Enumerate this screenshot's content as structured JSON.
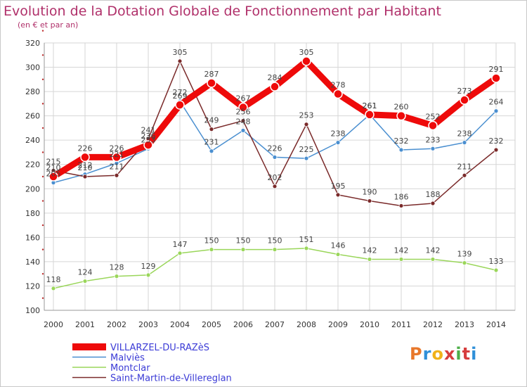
{
  "header": {
    "title": "Evolution de la Dotation Globale de Fonctionnement par Habitant",
    "subtitle": "(en € et par an)"
  },
  "logo": {
    "text": "Proxiti",
    "colors": [
      "#e8772a",
      "#2f8fd8",
      "#f0b21a",
      "#d63d3d",
      "#4dae48",
      "#d63d3d",
      "#2f8fd8"
    ]
  },
  "chart_data": {
    "type": "line",
    "title": "Evolution de la Dotation Globale de Fonctionnement par Habitant",
    "subtitle": "(en € et par an)",
    "xlabel": "",
    "ylabel": "",
    "x": [
      "2000",
      "2001",
      "2002",
      "2003",
      "2004",
      "2005",
      "2006",
      "2007",
      "2008",
      "2009",
      "2010",
      "2011",
      "2012",
      "2013",
      "2014"
    ],
    "ylim": [
      100,
      320
    ],
    "yticks": [
      100,
      120,
      140,
      160,
      180,
      200,
      220,
      240,
      260,
      280,
      300,
      320
    ],
    "grid": true,
    "legend_position": "bottom-left",
    "series": [
      {
        "name": "Malviès",
        "color": "#4a8fd0",
        "values": [
          205,
          212,
          221,
          233,
          272,
          231,
          248,
          226,
          225,
          238,
          261,
          232,
          233,
          238,
          264
        ]
      },
      {
        "name": "Montclar",
        "color": "#9ad65a",
        "values": [
          118,
          124,
          128,
          129,
          147,
          150,
          150,
          150,
          151,
          146,
          142,
          142,
          142,
          139,
          133
        ]
      },
      {
        "name": "Saint-Martin-de-Villereglan",
        "color": "#7a2a2a",
        "values": [
          215,
          210,
          211,
          241,
          305,
          249,
          256,
          202,
          253,
          195,
          190,
          186,
          188,
          211,
          232
        ]
      },
      {
        "name": "VILLARZEL-DU-RAZèS",
        "color": "#ee0a0a",
        "values": [
          210,
          226,
          226,
          236,
          269,
          287,
          267,
          284,
          305,
          278,
          261,
          260,
          252,
          273,
          291
        ]
      }
    ],
    "legend": [
      {
        "name": "VILLARZEL-DU-RAZèS",
        "color": "#ee0a0a"
      },
      {
        "name": "Malviès",
        "color": "#4a8fd0"
      },
      {
        "name": "Montclar",
        "color": "#9ad65a"
      },
      {
        "name": "Saint-Martin-de-Villereglan",
        "color": "#7a2a2a"
      }
    ]
  }
}
